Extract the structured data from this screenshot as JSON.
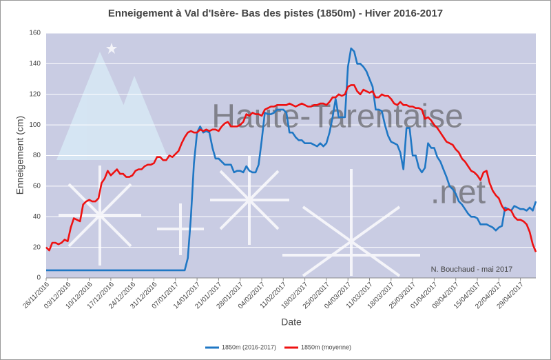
{
  "chart_data": {
    "type": "line",
    "title": "Enneigement à Val d'Isère- Bas des pistes (1850m) - Hiver 2016-2017",
    "xlabel": "Date",
    "ylabel": "Enneigement (cm)",
    "annotations": [
      "N. Bouchaud - mai 2017",
      "Haute-Tarentaise",
      ".net"
    ],
    "categories": [
      "26/11/2016",
      null,
      null,
      null,
      null,
      null,
      null,
      "03/12/2016",
      null,
      null,
      null,
      null,
      null,
      null,
      "10/12/2016",
      null,
      null,
      null,
      null,
      null,
      null,
      "17/12/2016",
      null,
      null,
      null,
      null,
      null,
      null,
      "24/12/2016",
      null,
      null,
      null,
      null,
      null,
      null,
      "31/12/2016",
      null,
      null,
      null,
      null,
      null,
      null,
      "07/01/2017",
      null,
      null,
      null,
      null,
      null,
      null,
      "14/01/2017",
      null,
      null,
      null,
      null,
      null,
      null,
      "21/01/2017",
      null,
      null,
      null,
      null,
      null,
      null,
      "28/01/2017",
      null,
      null,
      null,
      null,
      null,
      null,
      "04/02/2017",
      null,
      null,
      null,
      null,
      null,
      null,
      "11/02/2017",
      null,
      null,
      null,
      null,
      null,
      null,
      "18/02/2017",
      null,
      null,
      null,
      null,
      null,
      null,
      "25/02/2017",
      null,
      null,
      null,
      null,
      null,
      null,
      "04/03/2017",
      null,
      null,
      null,
      null,
      null,
      null,
      "11/03/2017",
      null,
      null,
      null,
      null,
      null,
      null,
      "18/03/2017",
      null,
      null,
      null,
      null,
      null,
      null,
      "25/03/2017",
      null,
      null,
      null,
      null,
      null,
      null,
      "01/04/2017",
      null,
      null,
      null,
      null,
      null,
      null,
      "08/04/2017",
      null,
      null,
      null,
      null,
      null,
      null,
      "15/04/2017",
      null,
      null,
      null,
      null,
      null,
      null,
      "22/04/2017",
      null,
      null,
      null,
      null,
      null,
      null,
      "29/04/2017",
      null,
      null,
      null,
      null,
      null
    ],
    "series": [
      {
        "name": "1850m (2016-2017)",
        "color": "#1f77c4",
        "values": [
          5,
          5,
          5,
          5,
          5,
          5,
          5,
          5,
          5,
          5,
          5,
          5,
          5,
          5,
          5,
          5,
          5,
          5,
          5,
          5,
          5,
          5,
          5,
          5,
          5,
          5,
          5,
          5,
          5,
          5,
          5,
          5,
          5,
          5,
          5,
          5,
          5,
          5,
          5,
          5,
          5,
          5,
          5,
          5,
          5,
          5,
          13,
          40,
          75,
          95,
          99,
          95,
          96,
          95,
          85,
          78,
          78,
          76,
          74,
          74,
          74,
          69,
          70,
          70,
          69,
          73,
          70,
          69,
          69,
          74,
          90,
          108,
          107,
          107,
          108,
          110,
          110,
          110,
          108,
          95,
          95,
          92,
          90,
          90,
          88,
          88,
          88,
          87,
          86,
          88,
          86,
          88,
          95,
          105,
          117,
          105,
          105,
          105,
          138,
          150,
          148,
          140,
          140,
          138,
          135,
          130,
          125,
          110,
          110,
          109,
          100,
          93,
          89,
          88,
          87,
          82,
          71,
          98,
          98,
          80,
          80,
          72,
          69,
          72,
          88,
          85,
          85,
          79,
          76,
          71,
          66,
          60,
          58,
          55,
          50,
          48,
          45,
          42,
          40,
          40,
          39,
          35,
          35,
          35,
          34,
          33,
          31,
          33,
          34,
          46,
          45,
          44,
          47,
          46,
          45,
          45,
          44,
          46,
          44,
          50
        ]
      },
      {
        "name": "1850m (moyenne)",
        "color": "#ee1111",
        "values": [
          20,
          18,
          23,
          23,
          22,
          23,
          25,
          24,
          33,
          39,
          38,
          37,
          48,
          50,
          51,
          50,
          50,
          52,
          62,
          65,
          70,
          67,
          69,
          71,
          68,
          68,
          66,
          66,
          67,
          70,
          71,
          71,
          73,
          74,
          74,
          75,
          79,
          79,
          77,
          77,
          80,
          79,
          81,
          83,
          88,
          92,
          95,
          96,
          95,
          95,
          97,
          96,
          97,
          96,
          97,
          97,
          96,
          99,
          101,
          102,
          99,
          99,
          99,
          100,
          102,
          107,
          106,
          108,
          107,
          107,
          106,
          110,
          111,
          112,
          112,
          113,
          113,
          113,
          113,
          114,
          113,
          112,
          113,
          114,
          113,
          112,
          112,
          113,
          113,
          114,
          114,
          113,
          115,
          118,
          118,
          120,
          119,
          120,
          125,
          126,
          126,
          122,
          120,
          123,
          122,
          121,
          122,
          118,
          118,
          120,
          119,
          119,
          117,
          114,
          113,
          115,
          113,
          113,
          112,
          112,
          111,
          111,
          110,
          104,
          105,
          103,
          100,
          98,
          95,
          92,
          89,
          88,
          87,
          84,
          82,
          78,
          76,
          73,
          70,
          69,
          67,
          64,
          69,
          70,
          62,
          57,
          54,
          52,
          47,
          44,
          45,
          44,
          40,
          38,
          38,
          37,
          35,
          30,
          22,
          17
        ]
      }
    ],
    "ylim": [
      0,
      160
    ],
    "yticks": [
      0,
      20,
      40,
      60,
      80,
      100,
      120,
      140,
      160
    ],
    "grid": true,
    "legend": "bottom"
  }
}
